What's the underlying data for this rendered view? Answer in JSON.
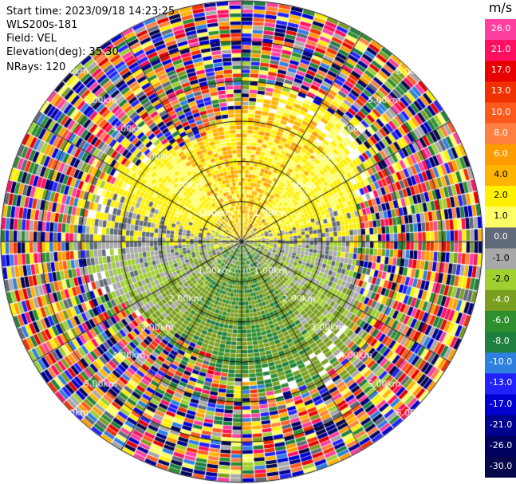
{
  "chart_data": {
    "type": "heatmap",
    "subtype": "radar-ppi",
    "info": {
      "start_time": "Start time: 2023/09/18 14:23:25",
      "instrument": "WLS200s-181",
      "field": "Field: VEL",
      "elevation": "Elevation(deg): 35.30",
      "nrays": "NRays: 120"
    },
    "colorbar": {
      "unit": "m/s",
      "ticks": [
        "26.0",
        "21.0",
        "17.0",
        "13.0",
        "10.0",
        "8.0",
        "6.0",
        "4.0",
        "2.0",
        "1.0",
        "0.0",
        "-1.0",
        "-2.0",
        "-4.0",
        "-6.0",
        "-8.0",
        "-10.0",
        "-13.0",
        "-17.0",
        "-21.0",
        "-26.0",
        "-30.0"
      ],
      "colors": [
        "#ff3fa0",
        "#ff1060",
        "#e80000",
        "#f03000",
        "#ff5a1e",
        "#ff8040",
        "#ff9c00",
        "#ffb400",
        "#fff000",
        "#ffff66",
        "#606a78",
        "#a8a8a8",
        "#9fd030",
        "#7a9e1e",
        "#2f8f2f",
        "#1e7f3e",
        "#2f7fe0",
        "#2222ff",
        "#0000d0",
        "#00008f",
        "#000060",
        "#06064a"
      ]
    },
    "range_rings_km": [
      "1.00km",
      "2.00km",
      "3.00km",
      "4.00km",
      "5.00km",
      "6.00km"
    ],
    "num_rays": 120,
    "range_max_km": 6.0,
    "dominant_pattern": {
      "near_field": "positive velocities (yellow/orange, 2-6 m/s) in northern half, negative velocities (olive/green, -2 to -6 m/s) in southern half, near-zero grey band along west-east",
      "far_field": "noise speckle across full colour range beyond ~3.5 km"
    }
  }
}
